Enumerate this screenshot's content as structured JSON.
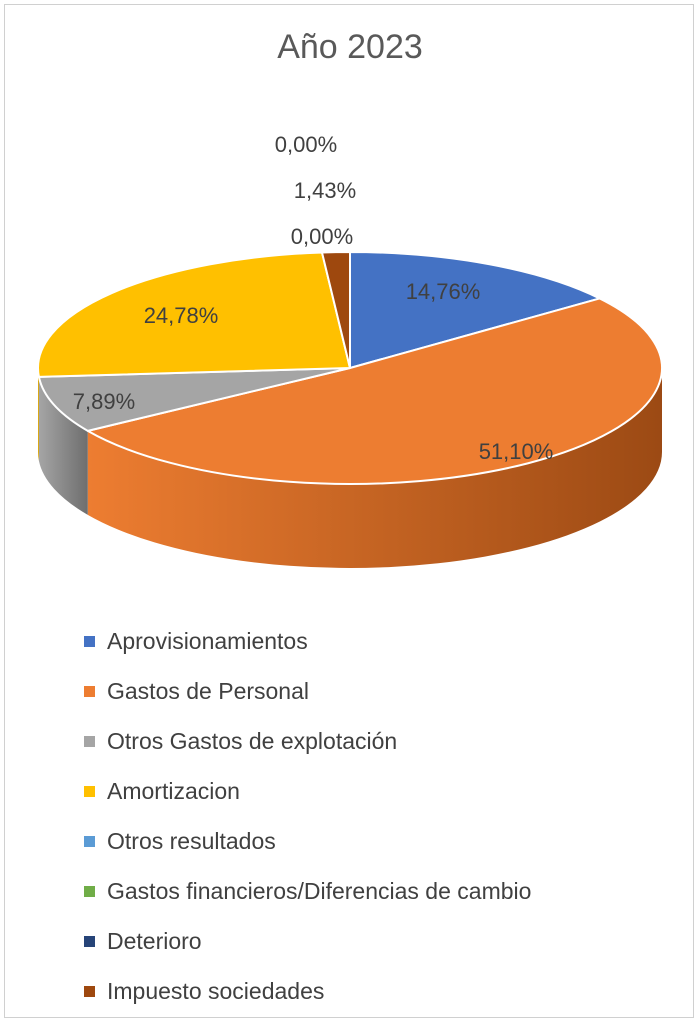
{
  "chart_data": {
    "type": "pie",
    "title": "Año 2023",
    "legend_position": "bottom",
    "slices": [
      {
        "name": "Aprovisionamientos",
        "value": 14.76,
        "label": "14,76%",
        "color": "#4472c4",
        "side": "#2e4f8a"
      },
      {
        "name": "Gastos de Personal",
        "value": 51.1,
        "label": "51,10%",
        "color": "#ed7d31",
        "side": "#9c4a14"
      },
      {
        "name": "Otros Gastos de explotación",
        "value": 7.89,
        "label": "7,89%",
        "color": "#a5a5a5",
        "side": "#6e6e6e"
      },
      {
        "name": "Amortizacion",
        "value": 24.78,
        "label": "24,78%",
        "color": "#ffc000",
        "side": "#b38600"
      },
      {
        "name": "Otros resultados",
        "value": 0.0,
        "label": "0,00%",
        "color": "#5b9bd5",
        "side": "#3c6d99"
      },
      {
        "name": "Gastos financieros/Diferencias de cambio",
        "value": 0.0,
        "label": "",
        "color": "#70ad47",
        "side": "#4a7a2d"
      },
      {
        "name": "Deterioro",
        "value": 0.0,
        "label": "0,00%",
        "color": "#264478",
        "side": "#172b4d"
      },
      {
        "name": "Impuesto sociedades",
        "value": 1.43,
        "label": "1,43%",
        "color": "#9e480e",
        "side": "#6b2f08"
      }
    ]
  }
}
